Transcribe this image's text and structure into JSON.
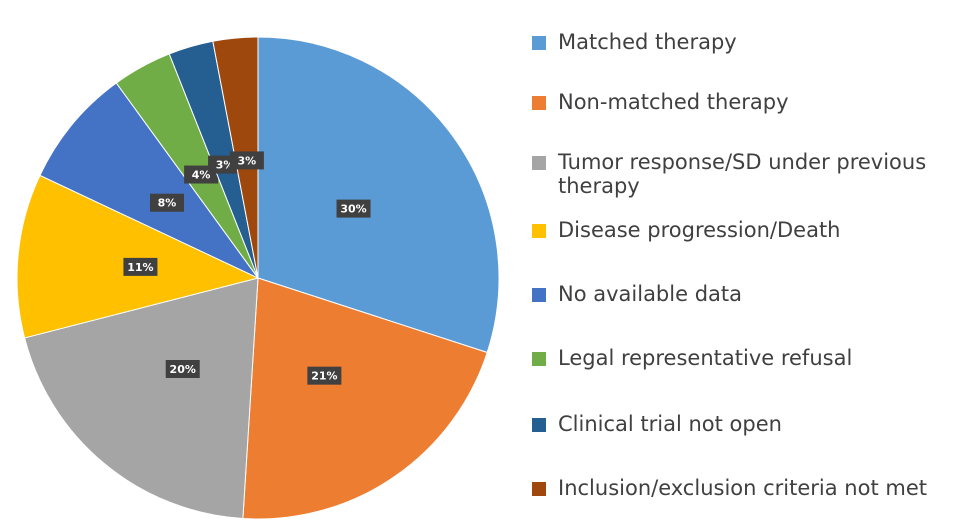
{
  "chart_data": {
    "type": "pie",
    "categories": [
      "Matched therapy",
      "Non-matched therapy",
      "Tumor response/SD under previous therapy",
      "Disease progression/Death",
      "No available data",
      "Legal representative refusal",
      "Clinical trial not open",
      "Inclusion/exclusion criteria not met"
    ],
    "values": [
      30,
      21,
      20,
      11,
      8,
      4,
      3,
      3
    ],
    "value_labels": [
      "30%",
      "21%",
      "20%",
      "11%",
      "8%",
      "4%",
      "3%",
      "3%"
    ],
    "colors": [
      "#5b9bd5",
      "#ed7d31",
      "#a5a5a5",
      "#ffc000",
      "#4472c4",
      "#70ad47",
      "#255e91",
      "#9e480e"
    ],
    "legend": "right"
  }
}
